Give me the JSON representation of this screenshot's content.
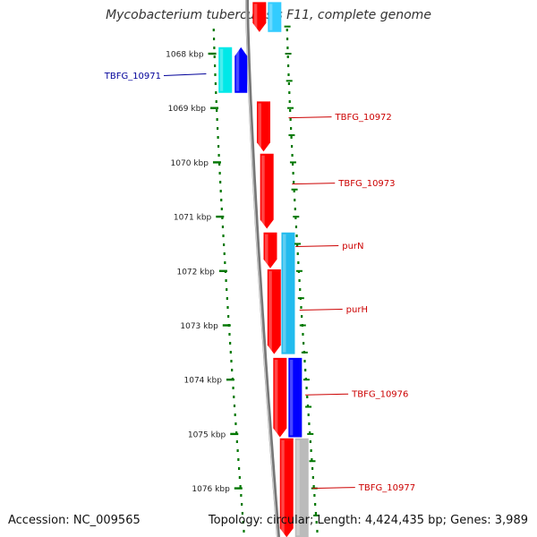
{
  "title": "Mycobacterium tuberculosis F11, complete genome",
  "footer": {
    "accession": "Accession: NC_009565",
    "topology": "Topology: circular; Length: 4,424,435 bp; Genes: 3,989"
  },
  "colors": {
    "forward_gene": "#ff0000",
    "reverse_gene": "#0000ff",
    "forward_cds": "#00c8ff",
    "reverse_cds": "#00e5e5",
    "other_feature": "#bbbbbb",
    "tick": "#007700",
    "label_forward": "#cc0000",
    "label_reverse": "#000099",
    "backbone": "#888888"
  },
  "ruler": {
    "unit": "kbp",
    "ticks": [
      {
        "kbp": 1068,
        "label": "1068 kbp"
      },
      {
        "kbp": 1069,
        "label": "1069 kbp"
      },
      {
        "kbp": 1070,
        "label": "1070 kbp"
      },
      {
        "kbp": 1071,
        "label": "1071 kbp"
      },
      {
        "kbp": 1072,
        "label": "1072 kbp"
      },
      {
        "kbp": 1073,
        "label": "1073 kbp"
      },
      {
        "kbp": 1074,
        "label": "1074 kbp"
      },
      {
        "kbp": 1075,
        "label": "1075 kbp"
      },
      {
        "kbp": 1076,
        "label": "1076 kbp"
      }
    ]
  },
  "features": [
    {
      "track": "forward_gene",
      "start": 1067.05,
      "end": 1067.6,
      "color": "#ff0000"
    },
    {
      "track": "forward_cds",
      "start": 1067.05,
      "end": 1067.6,
      "color": "#33ccff"
    },
    {
      "track": "reverse_outer",
      "start": 1067.88,
      "end": 1068.72,
      "color": "#00e8e8"
    },
    {
      "track": "reverse_inner",
      "start": 1067.88,
      "end": 1068.72,
      "color": "#0000ff"
    },
    {
      "track": "forward_gene",
      "start": 1068.88,
      "end": 1069.8,
      "color": "#ff0000"
    },
    {
      "track": "forward_gene",
      "start": 1069.84,
      "end": 1071.22,
      "color": "#ff0000"
    },
    {
      "track": "forward_gene",
      "start": 1071.29,
      "end": 1071.95,
      "color": "#ff0000"
    },
    {
      "track": "forward_cds",
      "start": 1071.29,
      "end": 1073.53,
      "color": "#22bbee"
    },
    {
      "track": "forward_gene",
      "start": 1071.97,
      "end": 1073.53,
      "color": "#ff0000"
    },
    {
      "track": "forward_gene",
      "start": 1073.6,
      "end": 1075.06,
      "color": "#ff0000"
    },
    {
      "track": "forward_cds",
      "start": 1073.6,
      "end": 1075.06,
      "color": "#0000ff"
    },
    {
      "track": "forward_gene",
      "start": 1075.08,
      "end": 1076.9,
      "color": "#ff0000"
    },
    {
      "track": "forward_cds",
      "start": 1075.08,
      "end": 1076.9,
      "color": "#bbbbbb"
    }
  ],
  "labels": [
    {
      "text": "TBFG_10971",
      "side": "left",
      "kbp": 1068.37,
      "color": "#000099"
    },
    {
      "text": "TBFG_10972",
      "side": "right",
      "kbp": 1069.18,
      "color": "#cc0000"
    },
    {
      "text": "TBFG_10973",
      "side": "right",
      "kbp": 1070.4,
      "color": "#cc0000"
    },
    {
      "text": "purN",
      "side": "right",
      "kbp": 1071.55,
      "color": "#cc0000"
    },
    {
      "text": "purH",
      "side": "right",
      "kbp": 1072.72,
      "color": "#cc0000"
    },
    {
      "text": "TBFG_10976",
      "side": "right",
      "kbp": 1074.28,
      "color": "#cc0000"
    },
    {
      "text": "TBFG_10977",
      "side": "right",
      "kbp": 1076.0,
      "color": "#cc0000"
    }
  ]
}
